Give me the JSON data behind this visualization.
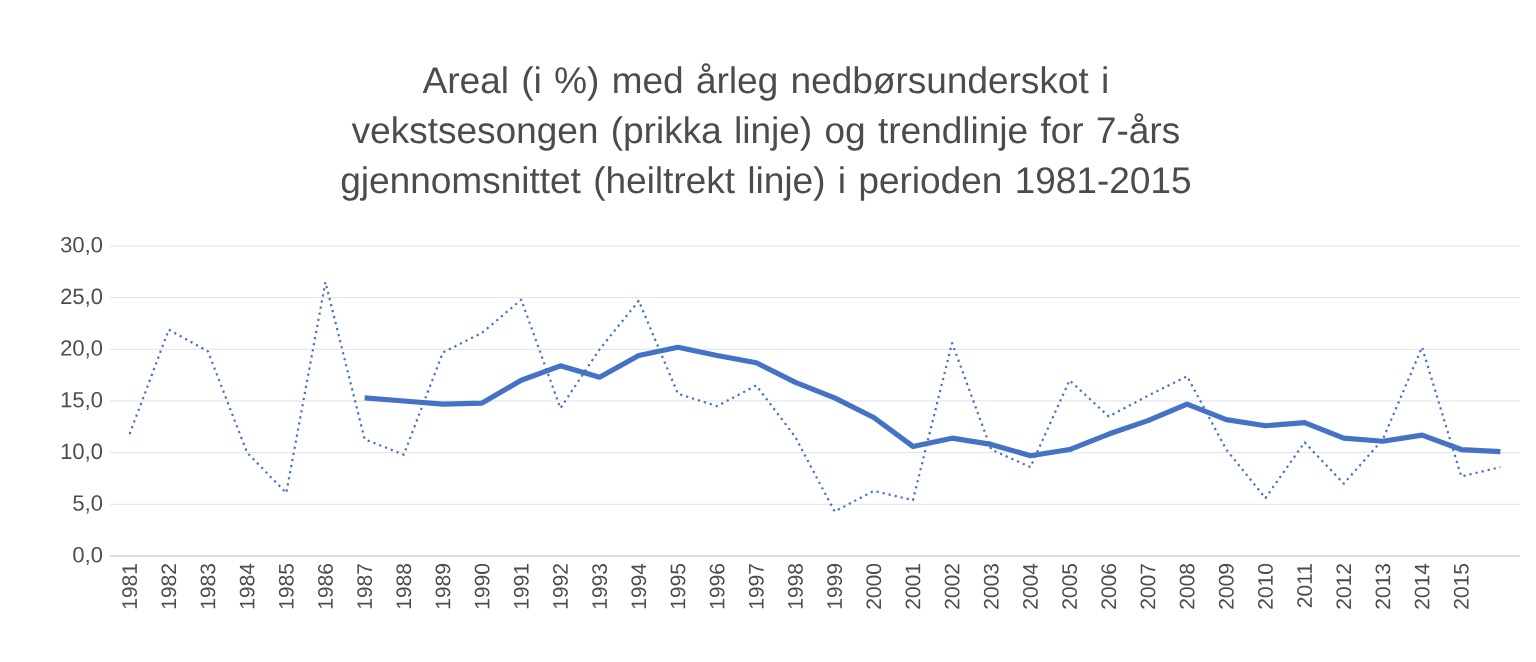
{
  "chart_data": {
    "type": "line",
    "title": "Areal (i %) med årleg nedbørsunderskot i vekstsesongen (prikka linje) og trendlinje for 7-års gjennomsnittet (heiltrekt linje) i perioden 1981-2015",
    "categories": [
      "1981",
      "1982",
      "1983",
      "1984",
      "1985",
      "1986",
      "1987",
      "1988",
      "1989",
      "1990",
      "1991",
      "1992",
      "1993",
      "1994",
      "1995",
      "1996",
      "1997",
      "1998",
      "1999",
      "2000",
      "2001",
      "2002",
      "2003",
      "2004",
      "2005",
      "2006",
      "2007",
      "2008",
      "2009",
      "2010",
      "2011",
      "2012",
      "2013",
      "2014",
      "2015",
      null
    ],
    "series": [
      {
        "color": "#4472c4",
        "line_style": "dotted",
        "values": [
          11.8,
          21.9,
          19.8,
          10.0,
          6.1,
          26.5,
          11.3,
          9.8,
          19.7,
          21.6,
          24.8,
          14.3,
          20.0,
          24.7,
          15.7,
          14.5,
          16.5,
          11.5,
          4.3,
          6.3,
          5.4,
          20.6,
          10.3,
          8.6,
          17.0,
          13.5,
          15.5,
          17.4,
          10.3,
          5.6,
          11.0,
          7.0,
          11.3,
          20.2,
          7.7,
          8.6
        ]
      },
      {
        "color": "#4472c4",
        "line_style": "solid",
        "values": [
          null,
          null,
          null,
          null,
          null,
          null,
          15.3,
          15.0,
          14.7,
          14.8,
          17.0,
          18.4,
          17.3,
          19.4,
          20.2,
          19.4,
          18.7,
          16.8,
          15.3,
          13.4,
          10.6,
          11.4,
          10.8,
          9.7,
          10.3,
          11.8,
          13.1,
          14.7,
          13.2,
          12.6,
          12.9,
          11.4,
          11.1,
          11.7,
          10.3,
          10.1
        ]
      }
    ],
    "ylim": [
      0,
      30
    ],
    "yticks": [
      {
        "value": 0,
        "label": "0,0"
      },
      {
        "value": 5,
        "label": "5,0"
      },
      {
        "value": 10,
        "label": "10,0"
      },
      {
        "value": 15,
        "label": "15,0"
      },
      {
        "value": 20,
        "label": "20,0"
      },
      {
        "value": 25,
        "label": "25,0"
      },
      {
        "value": 30,
        "label": "30,0"
      }
    ],
    "grid": "y",
    "marker": "none"
  }
}
